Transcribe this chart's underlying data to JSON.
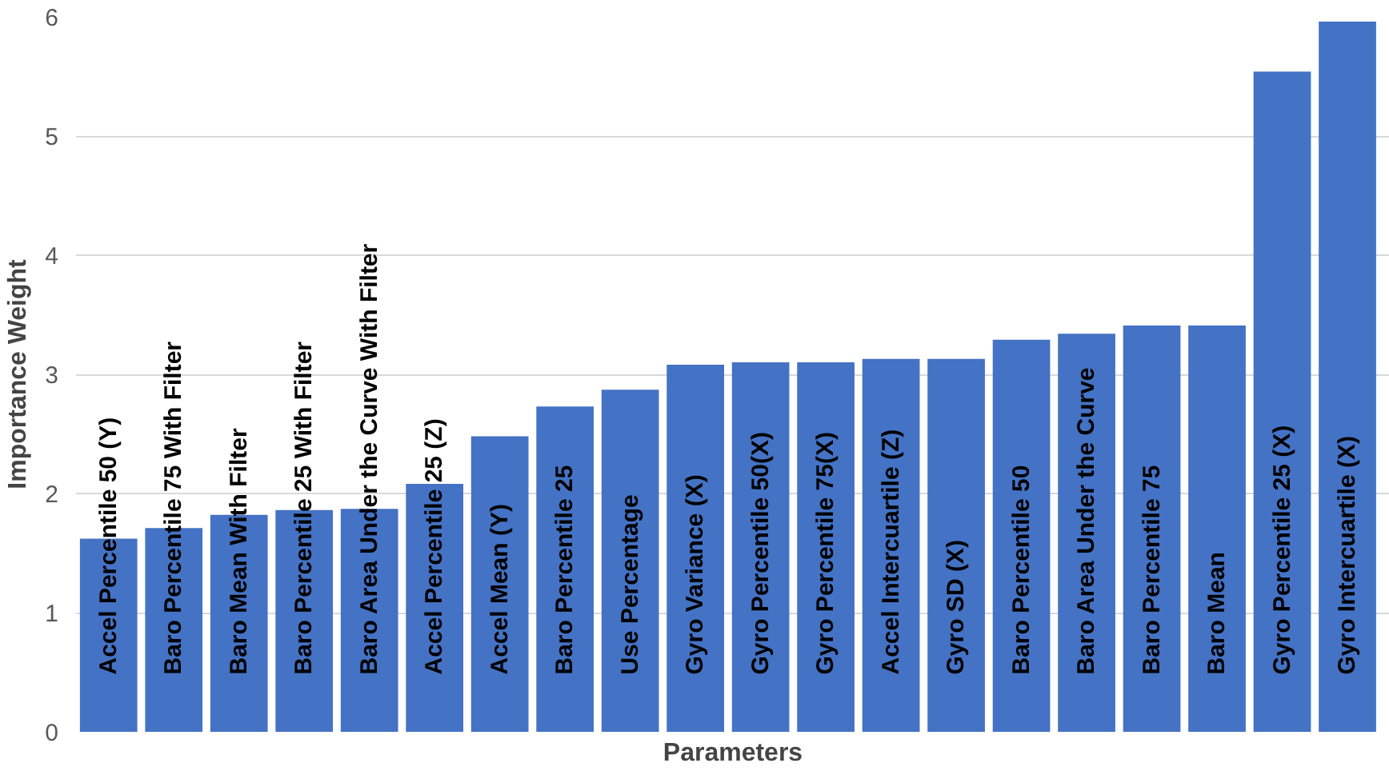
{
  "chart_data": {
    "type": "bar",
    "xlabel": "Parameters",
    "ylabel": "Importance Weight",
    "categories": [
      "Accel Percentile 50 (Y)",
      "Baro Percentile 75 With Filter",
      "Baro Mean With Filter",
      "Baro Percentile 25 With Filter",
      "Baro Area Under the Curve With Filter",
      "Accel Percentile 25 (Z)",
      "Accel Mean (Y)",
      "Baro Percentile 25",
      "Use Percentage",
      "Gyro Variance (X)",
      "Gyro Percentile 50(X)",
      "Gyro Percentile 75(X)",
      "Accel Intercuartile (Z)",
      "Gyro SD (X)",
      "Baro Percentile 50",
      "Baro Area Under the Curve",
      "Baro Percentile 75",
      "Baro Mean",
      "Gyro Percentile 25 (X)",
      "Gyro Intercuartile (X)"
    ],
    "values": [
      1.62,
      1.71,
      1.82,
      1.86,
      1.87,
      2.08,
      2.48,
      2.73,
      2.87,
      3.08,
      3.1,
      3.1,
      3.13,
      3.13,
      3.29,
      3.34,
      3.41,
      3.41,
      5.54,
      5.96
    ],
    "color": "#4472c4",
    "ylim": [
      0,
      6
    ],
    "yticks": [
      0,
      1,
      2,
      3,
      4,
      5,
      6
    ],
    "grid": "y",
    "tick_labels": "y"
  }
}
